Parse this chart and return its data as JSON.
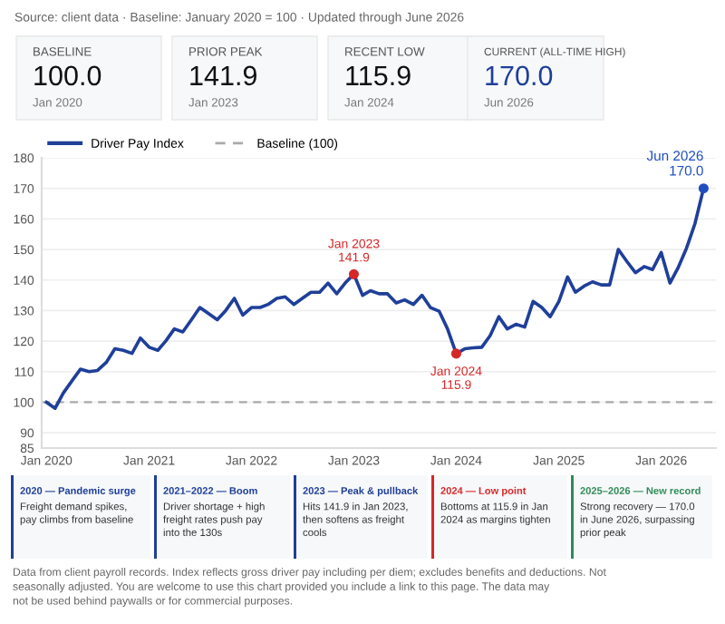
{
  "chart_data": {
    "type": "line",
    "x": [
      "2020-01",
      "2020-02",
      "2020-03",
      "2020-04",
      "2020-05",
      "2020-06",
      "2020-07",
      "2020-08",
      "2020-09",
      "2020-10",
      "2020-11",
      "2020-12",
      "2021-01",
      "2021-02",
      "2021-03",
      "2021-04",
      "2021-05",
      "2021-06",
      "2021-07",
      "2021-08",
      "2021-09",
      "2021-10",
      "2021-11",
      "2021-12",
      "2022-01",
      "2022-02",
      "2022-03",
      "2022-04",
      "2022-05",
      "2022-06",
      "2022-07",
      "2022-08",
      "2022-09",
      "2022-10",
      "2022-11",
      "2022-12",
      "2023-01",
      "2023-02",
      "2023-03",
      "2023-04",
      "2023-05",
      "2023-06",
      "2023-07",
      "2023-08",
      "2023-09",
      "2023-10",
      "2023-11",
      "2023-12",
      "2024-01",
      "2024-02",
      "2024-03",
      "2024-04",
      "2024-05",
      "2024-06",
      "2024-07",
      "2024-08",
      "2024-09",
      "2024-10",
      "2024-11",
      "2024-12",
      "2025-01",
      "2025-02",
      "2025-03",
      "2025-04",
      "2025-05",
      "2025-06",
      "2025-07",
      "2025-08",
      "2025-09",
      "2025-10",
      "2025-11",
      "2025-12",
      "2026-01",
      "2026-02",
      "2026-03",
      "2026-04",
      "2026-05",
      "2026-06"
    ],
    "series": [
      {
        "name": "Driver Pay Index",
        "color": "#1f3f99",
        "values": [
          100,
          98,
          103,
          107,
          110.8,
          110,
          110.4,
          113,
          117.5,
          117,
          116,
          121,
          118,
          117,
          120,
          124,
          123,
          127,
          131,
          129,
          127,
          130,
          134,
          128.5,
          131,
          131,
          132,
          134,
          134.5,
          132,
          134,
          136,
          136,
          139,
          135.5,
          139,
          141.9,
          135,
          136.5,
          135.5,
          135.5,
          132.5,
          133.5,
          132,
          135,
          131,
          129.8,
          124,
          115.9,
          117.5,
          117.8,
          118,
          121.8,
          128,
          124,
          125.5,
          124.6,
          133,
          131,
          128,
          133,
          141,
          136,
          138,
          139.4,
          138.4,
          138.4,
          150,
          146,
          142.4,
          144.4,
          143.4,
          149,
          139,
          143.8,
          150.4,
          158.4,
          170
        ]
      }
    ],
    "xlim": [
      "2019-12-15",
      "2026-07-15"
    ],
    "xticks": [
      {
        "value": "2020-01",
        "label": "Jan 2020"
      },
      {
        "value": "2021-01",
        "label": "Jan 2021"
      },
      {
        "value": "2022-01",
        "label": "Jan 2022"
      },
      {
        "value": "2023-01",
        "label": "Jan 2023"
      },
      {
        "value": "2024-01",
        "label": "Jan 2024"
      },
      {
        "value": "2025-01",
        "label": "Jan 2025"
      },
      {
        "value": "2026-01",
        "label": "Jan 2026"
      }
    ],
    "ylim": [
      85,
      180
    ],
    "yticks": [
      85,
      90,
      100,
      110,
      120,
      130,
      140,
      150,
      160,
      170,
      180
    ],
    "grid": "y",
    "legend": "top left",
    "ref_lines": [
      {
        "axis": "y",
        "value": 100,
        "label": "Baseline (100)",
        "color": "#aaaaaa",
        "line_style": "dashed"
      }
    ],
    "annotations": [
      "Source: client data · Baseline: January 2020 = 100 · Updated through June 2026",
      "BASELINE",
      "100.0",
      "Jan 2020",
      "PRIOR PEAK",
      "141.9",
      "Jan 2023",
      "RECENT LOW",
      "115.9",
      "Jan 2024",
      "CURRENT (ALL-TIME HIGH)",
      "170.0",
      "Jun 2026",
      "2020 — Pandemic surge",
      "Freight demand spikes,\npay climbs from baseline",
      "2021–2022 — Boom",
      "Driver shortage + high\nfreight rates push pay\ninto the 130s",
      "2023 — Peak & pullback",
      "Hits 141.9 in Jan 2023,\nthen softens as freight\ncools",
      "2024 — Low point",
      "Bottoms at 115.9 in Jan\n2024 as margins tighten",
      "2025–2026 — New record",
      "Strong recovery — 170.0\nin June 2026, surpassing\nprior peak",
      "Data from client payroll records. Index reflects gross driver pay including per diem; excludes benefits and deductions. Not\nseasonally adjusted. You are welcome to use this chart provided you include a link to this page. The data may\nnot be used behind paywalls or for commercial purposes.",
      {
        "text": "Jan 2023\n141.9",
        "x": "2023-01",
        "y": 141.9
      },
      {
        "text": "Jan 2024\n115.9",
        "x": "2024-01",
        "y": 115.9
      },
      {
        "text": "Jun 2026\n170.0",
        "x": "2026-06",
        "y": 170
      }
    ]
  }
}
